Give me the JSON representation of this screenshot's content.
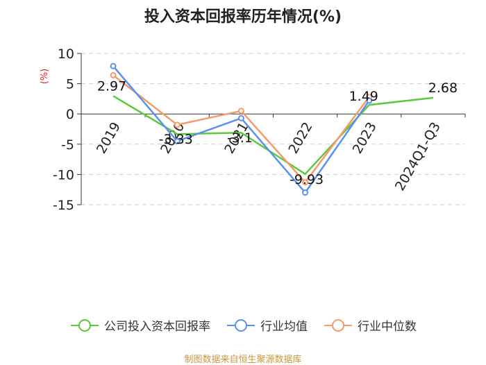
{
  "title": "投入资本回报率历年情况(%)",
  "footer": "制图数据来自恒生聚源数据库",
  "chart_data": {
    "type": "line",
    "title": "投入资本回报率历年情况(%)",
    "ylabel": "(%)",
    "categories": [
      "2019",
      "2020",
      "2021",
      "2022",
      "2023",
      "2024Q1-Q3"
    ],
    "ylim": [
      -15,
      10
    ],
    "yticks": [
      10,
      5,
      0,
      -5,
      -10,
      -15
    ],
    "grid": true,
    "legend_position": "bottom",
    "series": [
      {
        "name": "公司投入资本回报率",
        "color": "#5cc93a",
        "values": [
          2.97,
          -3.33,
          -3.1,
          -9.93,
          1.49,
          2.68
        ],
        "labels": [
          "2.97",
          "-3.33",
          "-3.1",
          "-9.93",
          "1.49",
          "2.68"
        ]
      },
      {
        "name": "行业均值",
        "color": "#5b8ff0",
        "values": [
          7.9,
          -4.5,
          -0.7,
          -13.0,
          2.2,
          null
        ]
      },
      {
        "name": "行业中位数",
        "color": "#f59a6a",
        "values": [
          6.4,
          -1.8,
          0.5,
          -11.3,
          2.8,
          null
        ]
      }
    ]
  }
}
